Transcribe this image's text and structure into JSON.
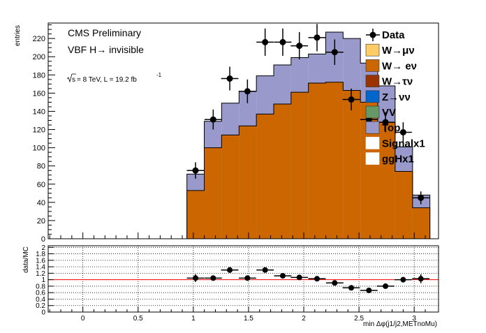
{
  "chart_data": {
    "type": "histogram",
    "annotations": {
      "experiment": "CMS Preliminary",
      "channel": "VBF H→ invisible",
      "lumi_sqrt": "s",
      "lumi_text": "= 8 TeV, L = 19.2 fb",
      "lumi_sup": "-1"
    },
    "xlabel": "min Δφ(j1/j2,METnoMu)",
    "ylabel": "entries",
    "ratio_ylabel": "data/MC",
    "xlim": [
      -0.314,
      3.22
    ],
    "ylim": [
      0,
      237
    ],
    "ratio_ylim": [
      0,
      2.05
    ],
    "x_ticks": [
      "0",
      "0.5",
      "1",
      "1.5",
      "2",
      "2.5",
      "3"
    ],
    "y_ticks": [
      "0",
      "20",
      "40",
      "60",
      "80",
      "100",
      "120",
      "140",
      "160",
      "180",
      "200",
      "220"
    ],
    "ratio_ticks": [
      "0",
      "0.2",
      "0.4",
      "0.6",
      "0.8",
      "1",
      "1.2",
      "1.4",
      "1.6",
      "1.8",
      "2"
    ],
    "bin_edges": [
      0.942,
      1.099,
      1.256,
      1.414,
      1.571,
      1.728,
      1.885,
      2.042,
      2.199,
      2.356,
      2.513,
      2.67,
      2.827,
      2.985,
      3.142
    ],
    "legend": [
      {
        "label": "Data",
        "color": "#000000",
        "style": "marker"
      },
      {
        "label": "W→μν",
        "color": "#ffcc66",
        "style": "box"
      },
      {
        "label": "W→ eν",
        "color": "#cc6600",
        "style": "box"
      },
      {
        "label": "W→τν",
        "color": "#993300",
        "style": "box"
      },
      {
        "label": "Z→νν",
        "color": "#0066cc",
        "style": "box"
      },
      {
        "label": "VV",
        "color": "#669966",
        "style": "box"
      },
      {
        "label": "Top",
        "color": "#9999cc",
        "style": "box"
      },
      {
        "label": "Signalx1",
        "color": "#ffffff",
        "style": "box"
      },
      {
        "label": "ggHx1",
        "color": "#ffffff",
        "style": "box"
      }
    ],
    "series": [
      {
        "name": "W→ eν",
        "color": "#cc6600",
        "values": [
          53,
          100,
          114,
          124,
          137,
          148,
          161,
          171,
          172,
          163,
          150,
          128,
          74,
          34
        ]
      },
      {
        "name": "Top",
        "color": "#9999cc",
        "values": [
          18,
          29,
          35,
          38,
          42,
          43,
          38,
          32,
          55,
          57,
          43,
          40,
          27,
          14
        ]
      }
    ],
    "data_points": {
      "name": "Data",
      "x": [
        1.02,
        1.18,
        1.33,
        1.49,
        1.65,
        1.81,
        1.96,
        2.12,
        2.28,
        2.43,
        2.59,
        2.74,
        2.9,
        3.06
      ],
      "y": [
        75,
        131,
        176,
        162,
        216,
        216,
        212,
        221,
        205,
        153,
        131,
        128,
        117,
        45
      ],
      "err": [
        9,
        11,
        13,
        13,
        15,
        15,
        15,
        15,
        14,
        12,
        11,
        11,
        11,
        7
      ],
      "xerr": 0.0785
    },
    "ratio_points": {
      "x": [
        1.02,
        1.18,
        1.33,
        1.49,
        1.65,
        1.81,
        1.96,
        2.12,
        2.28,
        2.43,
        2.59,
        2.74,
        2.9,
        3.06
      ],
      "y": [
        1.05,
        1.05,
        1.3,
        1.05,
        1.3,
        1.12,
        1.07,
        1.03,
        0.9,
        0.75,
        0.67,
        0.8,
        1.0,
        1.03
      ],
      "err": [
        0.12,
        0.08,
        0.09,
        0.08,
        0.07,
        0.06,
        0.05,
        0.05,
        0.05,
        0.05,
        0.05,
        0.06,
        0.08,
        0.14
      ]
    },
    "reference_line": {
      "y": 1.0,
      "color": "#ff0000"
    }
  }
}
